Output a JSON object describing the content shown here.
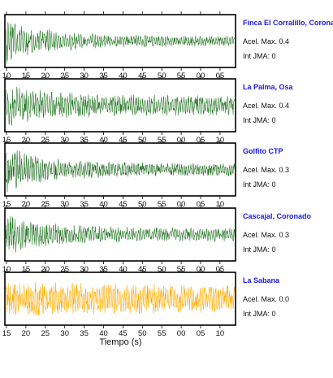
{
  "chart_data": [
    {
      "type": "line",
      "station": "Finca El Corralillo, Coronado",
      "acel_label": "Acel. Max. 0.4",
      "jma_label": "Int JMA: 0",
      "acel_max": 0.4,
      "jma": 0,
      "color": "#2a7a2a",
      "ticks": [
        "10",
        "15",
        "20",
        "25",
        "30",
        "35",
        "40",
        "45",
        "50",
        "55",
        "00",
        "05"
      ],
      "amp_start": 0.95,
      "decay": 0.8
    },
    {
      "type": "line",
      "station": "La Palma, Osa",
      "acel_label": "Acel. Max. 0.4",
      "jma_label": "Int JMA: 0",
      "acel_max": 0.4,
      "jma": 0,
      "color": "#2a7a2a",
      "ticks": [
        "15",
        "20",
        "25",
        "30",
        "35",
        "40",
        "45",
        "50",
        "55",
        "00",
        "05",
        "10"
      ],
      "amp_start": 0.9,
      "decay": 0.55
    },
    {
      "type": "line",
      "station": "Golfito CTP",
      "acel_label": "Acel. Max. 0.3",
      "jma_label": "Int JMA: 0",
      "acel_max": 0.3,
      "jma": 0,
      "color": "#1f6b1f",
      "ticks": [
        "15",
        "20",
        "25",
        "30",
        "35",
        "40",
        "45",
        "50",
        "55",
        "00",
        "05",
        "10"
      ],
      "amp_start": 0.95,
      "decay": 0.75
    },
    {
      "type": "line",
      "station": "Cascajal, Coronado",
      "acel_label": "Acel. Max. 0.3",
      "jma_label": "Int JMA: 0",
      "acel_max": 0.3,
      "jma": 0,
      "color": "#2a7a2a",
      "ticks": [
        "10",
        "15",
        "20",
        "25",
        "30",
        "35",
        "40",
        "45",
        "50",
        "55",
        "00",
        "05"
      ],
      "amp_start": 0.85,
      "decay": 0.7
    },
    {
      "type": "line",
      "station": "La Sabana",
      "acel_label": "Acel. Max. 0.0",
      "jma_label": "Int JMA: 0",
      "acel_max": 0.0,
      "jma": 0,
      "color": "#ffaa00",
      "ticks": [
        "15",
        "20",
        "25",
        "30",
        "35",
        "40",
        "45",
        "50",
        "55",
        "00",
        "05",
        "10"
      ],
      "amp_start": 0.8,
      "decay": 0.25
    }
  ],
  "xlabel": "Tiempo (s)"
}
